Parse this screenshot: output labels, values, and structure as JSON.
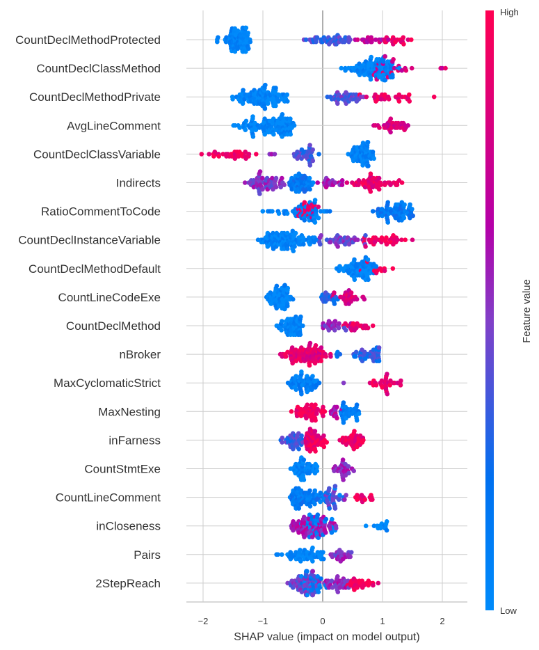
{
  "chart_data": {
    "type": "scatter",
    "subtype": "shap-beeswarm",
    "title": "",
    "xlabel": "SHAP value (impact on model output)",
    "ylabel": "",
    "xlim": [
      -2.2,
      2.45
    ],
    "xticks": [
      -2,
      -1,
      0,
      1,
      2
    ],
    "xtick_labels": [
      "−2",
      "−1",
      "0",
      "1",
      "2"
    ],
    "grid": true,
    "colorbar": {
      "title": "Feature value",
      "high_label": "High",
      "low_label": "Low",
      "colors": [
        "#008bfb",
        "#0070f0",
        "#6a56d6",
        "#b400a8",
        "#ff0052"
      ],
      "placement": "right"
    },
    "features": [
      {
        "name": "CountDeclMethodProtected",
        "segments": [
          {
            "x0": -1.8,
            "x1": -1.2,
            "v": 0.05,
            "n": 90,
            "peak": -1.3
          },
          {
            "x0": -0.35,
            "x1": 0.5,
            "v": 0.35,
            "n": 45,
            "peak": 0.2
          },
          {
            "x0": 0.5,
            "x1": 1.2,
            "v": 0.7,
            "n": 20,
            "peak": 0.8
          },
          {
            "x0": 1.0,
            "x1": 1.55,
            "v": 0.95,
            "n": 18,
            "peak": 1.15
          }
        ]
      },
      {
        "name": "CountDeclClassMethod",
        "segments": [
          {
            "x0": 0.3,
            "x1": 1.3,
            "v": 0.05,
            "n": 110,
            "peak": 1.0
          },
          {
            "x0": 0.8,
            "x1": 1.6,
            "v": 0.8,
            "n": 20,
            "peak": 1.0
          },
          {
            "x0": 1.9,
            "x1": 2.25,
            "v": 0.8,
            "n": 3,
            "peak": 2.0
          }
        ]
      },
      {
        "name": "CountDeclMethodPrivate",
        "segments": [
          {
            "x0": -1.55,
            "x1": -0.45,
            "v": 0.05,
            "n": 110,
            "peak": -1.05
          },
          {
            "x0": 0.0,
            "x1": 0.7,
            "v": 0.4,
            "n": 40,
            "peak": 0.5
          },
          {
            "x0": 0.5,
            "x1": 1.95,
            "v": 0.9,
            "n": 30,
            "peak": 0.9
          }
        ]
      },
      {
        "name": "AvgLineComment",
        "segments": [
          {
            "x0": -1.55,
            "x1": -0.45,
            "v": 0.05,
            "n": 110,
            "peak": -0.6
          },
          {
            "x0": 0.8,
            "x1": 1.6,
            "v": 0.8,
            "n": 35,
            "peak": 1.0
          }
        ]
      },
      {
        "name": "CountDeclClassVariable",
        "segments": [
          {
            "x0": -2.05,
            "x1": -1.0,
            "v": 0.95,
            "n": 35,
            "peak": -1.5
          },
          {
            "x0": -0.95,
            "x1": -0.75,
            "v": 0.6,
            "n": 3,
            "peak": -0.85
          },
          {
            "x0": -0.55,
            "x1": -0.05,
            "v": 0.35,
            "n": 35,
            "peak": -0.25
          },
          {
            "x0": 0.4,
            "x1": 0.9,
            "v": 0.05,
            "n": 70,
            "peak": 0.7
          }
        ]
      },
      {
        "name": "Indirects",
        "segments": [
          {
            "x0": -1.35,
            "x1": -0.6,
            "v": 0.5,
            "n": 60,
            "peak": -1.0
          },
          {
            "x0": -0.6,
            "x1": -0.1,
            "v": 0.15,
            "n": 55,
            "peak": -0.5
          },
          {
            "x0": -0.1,
            "x1": 0.4,
            "v": 0.6,
            "n": 20,
            "peak": 0.1
          },
          {
            "x0": 0.3,
            "x1": 1.4,
            "v": 0.9,
            "n": 55,
            "peak": 0.8
          }
        ]
      },
      {
        "name": "RatioCommentToCode",
        "segments": [
          {
            "x0": -1.05,
            "x1": 0.25,
            "v": 0.1,
            "n": 55,
            "peak": -0.25
          },
          {
            "x0": -0.45,
            "x1": -0.05,
            "v": 0.9,
            "n": 25,
            "peak": -0.25
          },
          {
            "x0": 0.8,
            "x1": 1.6,
            "v": 0.15,
            "n": 70,
            "peak": 1.35
          }
        ]
      },
      {
        "name": "CountDeclInstanceVariable",
        "segments": [
          {
            "x0": -1.2,
            "x1": 0.0,
            "v": 0.05,
            "n": 110,
            "peak": -0.7
          },
          {
            "x0": -0.2,
            "x1": 0.9,
            "v": 0.45,
            "n": 40,
            "peak": 0.3
          },
          {
            "x0": 0.5,
            "x1": 1.55,
            "v": 0.95,
            "n": 35,
            "peak": 1.1
          }
        ]
      },
      {
        "name": "CountDeclMethodDefault",
        "segments": [
          {
            "x0": 0.2,
            "x1": 0.95,
            "v": 0.05,
            "n": 80,
            "peak": 0.65
          },
          {
            "x0": 0.6,
            "x1": 1.2,
            "v": 0.95,
            "n": 10,
            "peak": 0.9
          }
        ]
      },
      {
        "name": "CountLineCodeExe",
        "segments": [
          {
            "x0": -0.95,
            "x1": -0.5,
            "v": 0.05,
            "n": 70,
            "peak": -0.65
          },
          {
            "x0": -0.1,
            "x1": 0.3,
            "v": 0.3,
            "n": 20,
            "peak": 0.1
          },
          {
            "x0": 0.1,
            "x1": 0.8,
            "v": 0.8,
            "n": 30,
            "peak": 0.4
          }
        ]
      },
      {
        "name": "CountDeclMethod",
        "segments": [
          {
            "x0": -0.8,
            "x1": -0.3,
            "v": 0.05,
            "n": 60,
            "peak": -0.5
          },
          {
            "x0": -0.05,
            "x1": 0.5,
            "v": 0.5,
            "n": 25,
            "peak": 0.2
          },
          {
            "x0": 0.3,
            "x1": 0.9,
            "v": 0.9,
            "n": 20,
            "peak": 0.6
          }
        ]
      },
      {
        "name": "nBroker",
        "segments": [
          {
            "x0": -0.75,
            "x1": 0.2,
            "v": 0.85,
            "n": 90,
            "peak": -0.25
          },
          {
            "x0": 0.2,
            "x1": 0.35,
            "v": 0.2,
            "n": 4,
            "peak": 0.25
          },
          {
            "x0": 0.45,
            "x1": 0.95,
            "v": 0.3,
            "n": 40,
            "peak": 0.95
          }
        ]
      },
      {
        "name": "MaxCyclomaticStrict",
        "segments": [
          {
            "x0": -0.6,
            "x1": -0.05,
            "v": 0.1,
            "n": 60,
            "peak": -0.3
          },
          {
            "x0": 0.35,
            "x1": 0.35,
            "v": 0.6,
            "n": 1,
            "peak": 0.35
          },
          {
            "x0": 0.75,
            "x1": 1.4,
            "v": 0.9,
            "n": 30,
            "peak": 1.05
          }
        ]
      },
      {
        "name": "MaxNesting",
        "segments": [
          {
            "x0": -0.6,
            "x1": 0.1,
            "v": 0.95,
            "n": 50,
            "peak": -0.2
          },
          {
            "x0": 0.1,
            "x1": 0.4,
            "v": 0.65,
            "n": 15,
            "peak": 0.2
          },
          {
            "x0": 0.3,
            "x1": 0.65,
            "v": 0.1,
            "n": 35,
            "peak": 0.3
          }
        ]
      },
      {
        "name": "inFarness",
        "segments": [
          {
            "x0": -0.75,
            "x1": -0.3,
            "v": 0.35,
            "n": 40,
            "peak": -0.45
          },
          {
            "x0": -0.3,
            "x1": 0.1,
            "v": 0.9,
            "n": 55,
            "peak": -0.2
          },
          {
            "x0": 0.25,
            "x1": 0.75,
            "v": 0.9,
            "n": 40,
            "peak": 0.5
          }
        ]
      },
      {
        "name": "CountStmtExe",
        "segments": [
          {
            "x0": -0.55,
            "x1": 0.0,
            "v": 0.05,
            "n": 55,
            "peak": -0.4
          },
          {
            "x0": 0.1,
            "x1": 0.55,
            "v": 0.55,
            "n": 30,
            "peak": 0.3
          }
        ]
      },
      {
        "name": "CountLineComment",
        "segments": [
          {
            "x0": -0.55,
            "x1": 0.45,
            "v": 0.15,
            "n": 90,
            "peak": -0.5
          },
          {
            "x0": 0.0,
            "x1": 0.45,
            "v": 0.45,
            "n": 25,
            "peak": 0.2
          },
          {
            "x0": 0.5,
            "x1": 0.95,
            "v": 0.95,
            "n": 15,
            "peak": 0.7
          }
        ]
      },
      {
        "name": "inCloseness",
        "segments": [
          {
            "x0": -0.6,
            "x1": 0.35,
            "v": 0.6,
            "n": 80,
            "peak": -0.3
          },
          {
            "x0": -0.4,
            "x1": 0.35,
            "v": 0.1,
            "n": 35,
            "peak": -0.2
          },
          {
            "x0": 0.7,
            "x1": 1.15,
            "v": 0.05,
            "n": 14,
            "peak": 1.05
          }
        ]
      },
      {
        "name": "Pairs",
        "segments": [
          {
            "x0": -0.85,
            "x1": 0.15,
            "v": 0.05,
            "n": 55,
            "peak": -0.35
          },
          {
            "x0": 0.1,
            "x1": 0.5,
            "v": 0.5,
            "n": 25,
            "peak": 0.25
          }
        ]
      },
      {
        "name": "2StepReach",
        "segments": [
          {
            "x0": -0.6,
            "x1": 0.0,
            "v": 0.45,
            "n": 60,
            "peak": -0.3
          },
          {
            "x0": -0.4,
            "x1": 0.1,
            "v": 0.1,
            "n": 35,
            "peak": -0.3
          },
          {
            "x0": 0.0,
            "x1": 0.5,
            "v": 0.55,
            "n": 35,
            "peak": 0.3
          },
          {
            "x0": 0.4,
            "x1": 0.95,
            "v": 0.95,
            "n": 30,
            "peak": 0.6
          }
        ]
      }
    ]
  }
}
